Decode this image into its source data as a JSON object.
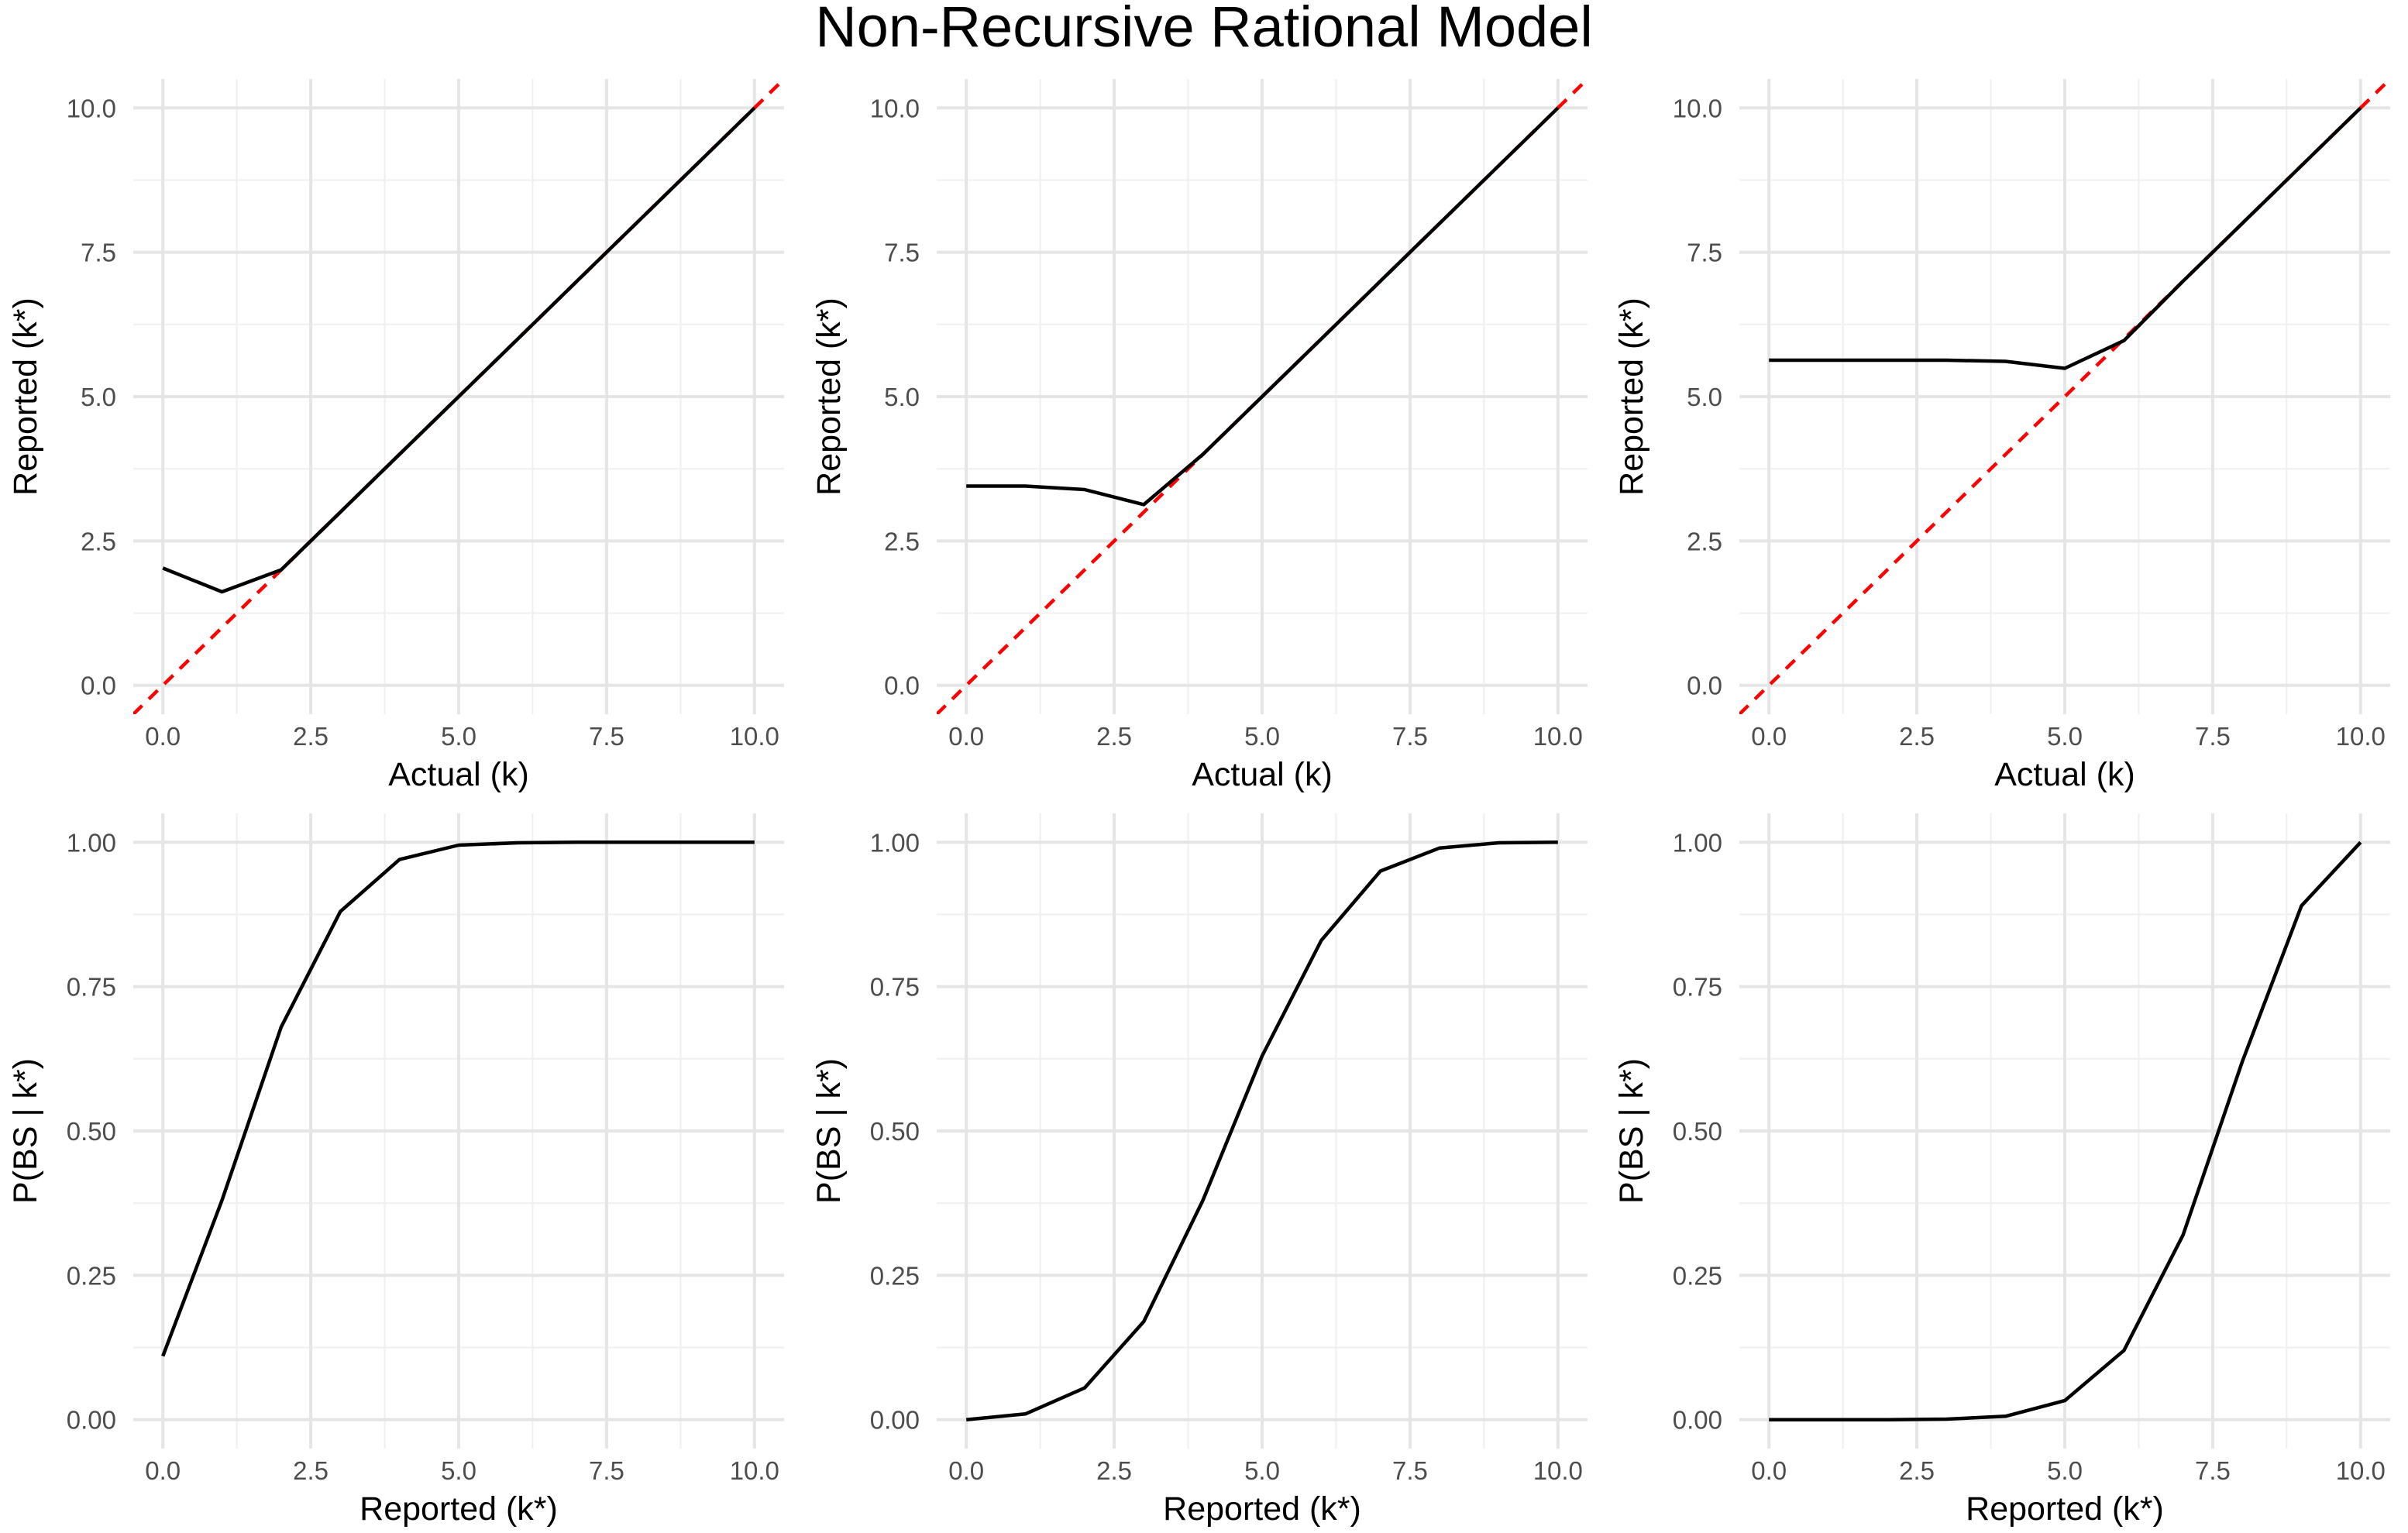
{
  "title": "Non-Recursive Rational Model",
  "colors": {
    "data_line": "#000000",
    "reference_line": "#ff0000",
    "grid": "#e5e5e5"
  },
  "chart_data": [
    {
      "type": "line",
      "xlabel": "Actual (k)",
      "ylabel": "Reported (k*)",
      "xlim": [
        -0.5,
        10.5
      ],
      "ylim": [
        -0.5,
        10.5
      ],
      "xticks": [
        "0.0",
        "2.5",
        "5.0",
        "7.5",
        "10.0"
      ],
      "yticks": [
        "0.0",
        "2.5",
        "5.0",
        "7.5",
        "10.0"
      ],
      "grid": true,
      "reference_line": {
        "style": "dashed",
        "color": "#ff0000",
        "slope": 1,
        "intercept": 0
      },
      "series": [
        {
          "x": [
            0,
            1,
            2,
            3,
            4,
            5,
            6,
            7,
            8,
            9,
            10
          ],
          "values": [
            2.03,
            1.62,
            2.0,
            3.0,
            4.0,
            5.0,
            6.0,
            7.0,
            8.0,
            9.0,
            10.0
          ]
        }
      ]
    },
    {
      "type": "line",
      "xlabel": "Actual (k)",
      "ylabel": "Reported (k*)",
      "xlim": [
        -0.5,
        10.5
      ],
      "ylim": [
        -0.5,
        10.5
      ],
      "xticks": [
        "0.0",
        "2.5",
        "5.0",
        "7.5",
        "10.0"
      ],
      "yticks": [
        "0.0",
        "2.5",
        "5.0",
        "7.5",
        "10.0"
      ],
      "grid": true,
      "reference_line": {
        "style": "dashed",
        "color": "#ff0000",
        "slope": 1,
        "intercept": 0
      },
      "series": [
        {
          "x": [
            0,
            1,
            2,
            3,
            4,
            5,
            6,
            7,
            8,
            9,
            10
          ],
          "values": [
            3.45,
            3.45,
            3.39,
            3.13,
            4.0,
            5.0,
            6.0,
            7.0,
            8.0,
            9.0,
            10.0
          ]
        }
      ]
    },
    {
      "type": "line",
      "xlabel": "Actual (k)",
      "ylabel": "Reported (k*)",
      "xlim": [
        -0.5,
        10.5
      ],
      "ylim": [
        -0.5,
        10.5
      ],
      "xticks": [
        "0.0",
        "2.5",
        "5.0",
        "7.5",
        "10.0"
      ],
      "yticks": [
        "0.0",
        "2.5",
        "5.0",
        "7.5",
        "10.0"
      ],
      "grid": true,
      "reference_line": {
        "style": "dashed",
        "color": "#ff0000",
        "slope": 1,
        "intercept": 0
      },
      "series": [
        {
          "x": [
            0,
            1,
            2,
            3,
            4,
            5,
            6,
            7,
            8,
            9,
            10
          ],
          "values": [
            5.63,
            5.63,
            5.63,
            5.63,
            5.61,
            5.49,
            5.97,
            7.0,
            8.0,
            9.0,
            10.0
          ]
        }
      ]
    },
    {
      "type": "line",
      "xlabel": "Reported (k*)",
      "ylabel": "P(BS | k*)",
      "xlim": [
        -0.5,
        10.5
      ],
      "ylim": [
        -0.05,
        1.05
      ],
      "xticks": [
        "0.0",
        "2.5",
        "5.0",
        "7.5",
        "10.0"
      ],
      "yticks": [
        "0.00",
        "0.25",
        "0.50",
        "0.75",
        "1.00"
      ],
      "grid": true,
      "series": [
        {
          "x": [
            0,
            1,
            2,
            3,
            4,
            5,
            6,
            7,
            8,
            9,
            10
          ],
          "values": [
            0.11,
            0.38,
            0.68,
            0.88,
            0.97,
            0.995,
            0.999,
            1.0,
            1.0,
            1.0,
            1.0
          ]
        }
      ]
    },
    {
      "type": "line",
      "xlabel": "Reported (k*)",
      "ylabel": "P(BS | k*)",
      "xlim": [
        -0.5,
        10.5
      ],
      "ylim": [
        -0.05,
        1.05
      ],
      "xticks": [
        "0.0",
        "2.5",
        "5.0",
        "7.5",
        "10.0"
      ],
      "yticks": [
        "0.00",
        "0.25",
        "0.50",
        "0.75",
        "1.00"
      ],
      "grid": true,
      "series": [
        {
          "x": [
            0,
            1,
            2,
            3,
            4,
            5,
            6,
            7,
            8,
            9,
            10
          ],
          "values": [
            0.0,
            0.01,
            0.055,
            0.17,
            0.38,
            0.63,
            0.83,
            0.95,
            0.99,
            0.999,
            1.0
          ]
        }
      ]
    },
    {
      "type": "line",
      "xlabel": "Reported (k*)",
      "ylabel": "P(BS | k*)",
      "xlim": [
        -0.5,
        10.5
      ],
      "ylim": [
        -0.05,
        1.05
      ],
      "xticks": [
        "0.0",
        "2.5",
        "5.0",
        "7.5",
        "10.0"
      ],
      "yticks": [
        "0.00",
        "0.25",
        "0.50",
        "0.75",
        "1.00"
      ],
      "grid": true,
      "series": [
        {
          "x": [
            0,
            1,
            2,
            3,
            4,
            5,
            6,
            7,
            8,
            9,
            10
          ],
          "values": [
            0.0,
            0.0,
            0.0,
            0.001,
            0.006,
            0.033,
            0.12,
            0.32,
            0.62,
            0.89,
            1.0
          ]
        }
      ]
    }
  ]
}
